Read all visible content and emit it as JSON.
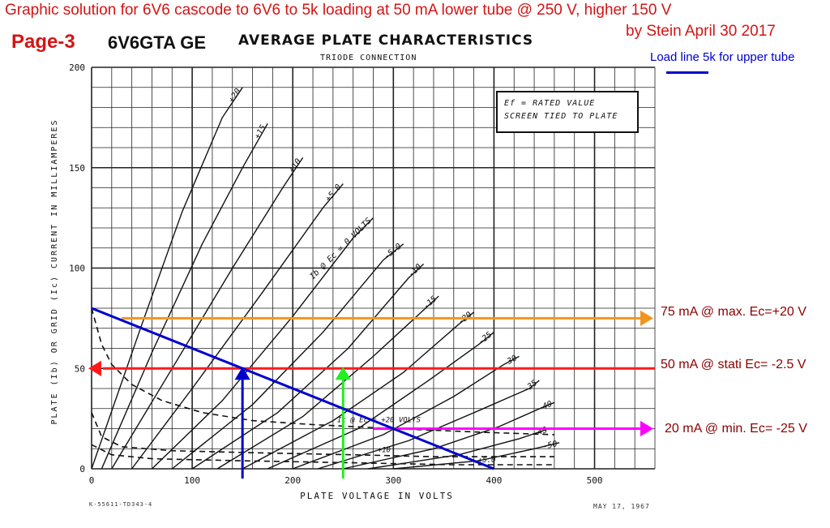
{
  "header": {
    "top_title": "Graphic solution for 6V6 cascode to 6V6 to 5k loading  at 50 mA lower tube @ 250 V, higher 150 V",
    "byline": "by Stein   April 30 2017",
    "page_label": "Page-3",
    "tube_name": "6V6GTA GE"
  },
  "info_box": {
    "line1": "Ef = RATED VALUE",
    "line2": "SCREEN TIED TO PLATE"
  },
  "legend": {
    "text": "Load line 5k for upper tube"
  },
  "annotations": {
    "a75": "75 mA @ max. Ec=+20 V",
    "a50": "50 mA @ stati Ec= -2.5 V",
    "a20": "20 mA @ min. Ec= -25 V"
  },
  "footer": {
    "left": "K-55611-TD343-4",
    "right": "MAY 17, 1967"
  },
  "colors": {
    "loadline": "#0000cc",
    "orange": "#f0961e",
    "red": "#ff1a1a",
    "green": "#22ee22",
    "magenta": "#ff00ff",
    "curves": "#111111",
    "grid": "#222222"
  },
  "chart_data": {
    "type": "line",
    "title": "AVERAGE PLATE CHARACTERISTICS",
    "subtitle": "TRIODE CONNECTION",
    "xlabel": "PLATE VOLTAGE IN VOLTS",
    "ylabel": "PLATE (Ib) OR GRID (Ic) CURRENT IN MILLIAMPERES",
    "xlim": [
      0,
      560
    ],
    "ylim": [
      0,
      200
    ],
    "x_ticks": [
      0,
      100,
      200,
      300,
      400,
      500
    ],
    "y_ticks": [
      0,
      50,
      100,
      150,
      200
    ],
    "grid": true,
    "plate_curves": [
      {
        "label": "+20",
        "points": [
          [
            0,
            0
          ],
          [
            50,
            72
          ],
          [
            90,
            128
          ],
          [
            130,
            175
          ],
          [
            150,
            190
          ]
        ]
      },
      {
        "label": "+15",
        "points": [
          [
            10,
            0
          ],
          [
            60,
            58
          ],
          [
            110,
            112
          ],
          [
            150,
            150
          ],
          [
            175,
            172
          ]
        ]
      },
      {
        "label": "+10",
        "points": [
          [
            20,
            0
          ],
          [
            80,
            50
          ],
          [
            140,
            100
          ],
          [
            190,
            140
          ],
          [
            210,
            155
          ]
        ]
      },
      {
        "label": "+5.0",
        "points": [
          [
            40,
            0
          ],
          [
            100,
            40
          ],
          [
            170,
            88
          ],
          [
            230,
            130
          ],
          [
            250,
            142
          ]
        ]
      },
      {
        "label": "Ib @ Ec = 0 VOLTS",
        "points": [
          [
            60,
            0
          ],
          [
            130,
            34
          ],
          [
            200,
            76
          ],
          [
            260,
            115
          ],
          [
            280,
            125
          ]
        ]
      },
      {
        "label": "-5.0",
        "points": [
          [
            80,
            0
          ],
          [
            160,
            32
          ],
          [
            230,
            68
          ],
          [
            290,
            104
          ],
          [
            310,
            112
          ]
        ]
      },
      {
        "label": "-10",
        "points": [
          [
            100,
            0
          ],
          [
            185,
            28
          ],
          [
            255,
            60
          ],
          [
            315,
            95
          ],
          [
            330,
            102
          ]
        ]
      },
      {
        "label": "-15",
        "points": [
          [
            125,
            0
          ],
          [
            210,
            26
          ],
          [
            280,
            56
          ],
          [
            345,
            86
          ]
        ]
      },
      {
        "label": "-20",
        "points": [
          [
            150,
            0
          ],
          [
            240,
            24
          ],
          [
            310,
            48
          ],
          [
            365,
            72
          ],
          [
            380,
            78
          ]
        ]
      },
      {
        "label": "-25",
        "points": [
          [
            175,
            0
          ],
          [
            265,
            20
          ],
          [
            335,
            44
          ],
          [
            385,
            62
          ],
          [
            400,
            68
          ]
        ]
      },
      {
        "label": "-30",
        "points": [
          [
            200,
            0
          ],
          [
            290,
            17
          ],
          [
            360,
            36
          ],
          [
            410,
            52
          ],
          [
            425,
            56
          ]
        ]
      },
      {
        "label": "-35",
        "points": [
          [
            225,
            0
          ],
          [
            315,
            14
          ],
          [
            385,
            29
          ],
          [
            435,
            40
          ],
          [
            445,
            44
          ]
        ]
      },
      {
        "label": "-40",
        "points": [
          [
            250,
            0
          ],
          [
            340,
            10
          ],
          [
            405,
            21
          ],
          [
            450,
            31
          ],
          [
            460,
            33
          ]
        ]
      },
      {
        "label": "-45",
        "points": [
          [
            275,
            0
          ],
          [
            365,
            7
          ],
          [
            425,
            15
          ],
          [
            455,
            20
          ]
        ]
      },
      {
        "label": "-50",
        "points": [
          [
            300,
            0
          ],
          [
            385,
            4
          ],
          [
            440,
            10
          ],
          [
            465,
            13
          ]
        ]
      }
    ],
    "grid_curves": [
      {
        "label": "Ic @ Ec = +20 VOLTS",
        "points": [
          [
            0,
            80
          ],
          [
            10,
            62
          ],
          [
            20,
            52
          ],
          [
            40,
            42
          ],
          [
            70,
            34
          ],
          [
            110,
            28
          ],
          [
            160,
            24
          ],
          [
            220,
            22
          ],
          [
            300,
            20
          ],
          [
            400,
            18
          ],
          [
            460,
            17
          ]
        ]
      },
      {
        "label": "+10",
        "points": [
          [
            0,
            28
          ],
          [
            10,
            16
          ],
          [
            30,
            11
          ],
          [
            80,
            9
          ],
          [
            160,
            8
          ],
          [
            260,
            7
          ],
          [
            340,
            6
          ],
          [
            460,
            6
          ]
        ]
      },
      {
        "label": "+5.0",
        "points": [
          [
            0,
            12
          ],
          [
            20,
            7
          ],
          [
            60,
            5
          ],
          [
            150,
            4
          ],
          [
            260,
            3
          ],
          [
            360,
            2
          ],
          [
            460,
            2
          ]
        ]
      }
    ],
    "series": [
      {
        "name": "Load line 5k for upper tube",
        "points": [
          [
            0,
            80
          ],
          [
            400,
            0
          ]
        ]
      }
    ],
    "markers": {
      "h_orange": {
        "y": 75,
        "x_from": 30,
        "x_to": 560
      },
      "h_red": {
        "y": 50,
        "x_from": 0,
        "x_to": 560
      },
      "h_magenta": {
        "y": 20,
        "x_from": 280,
        "x_to": 560
      },
      "v_blue": {
        "x": 150,
        "y_from": 0,
        "y_to": 50
      },
      "v_green": {
        "x": 250,
        "y_from": 0,
        "y_to": 50
      }
    }
  }
}
